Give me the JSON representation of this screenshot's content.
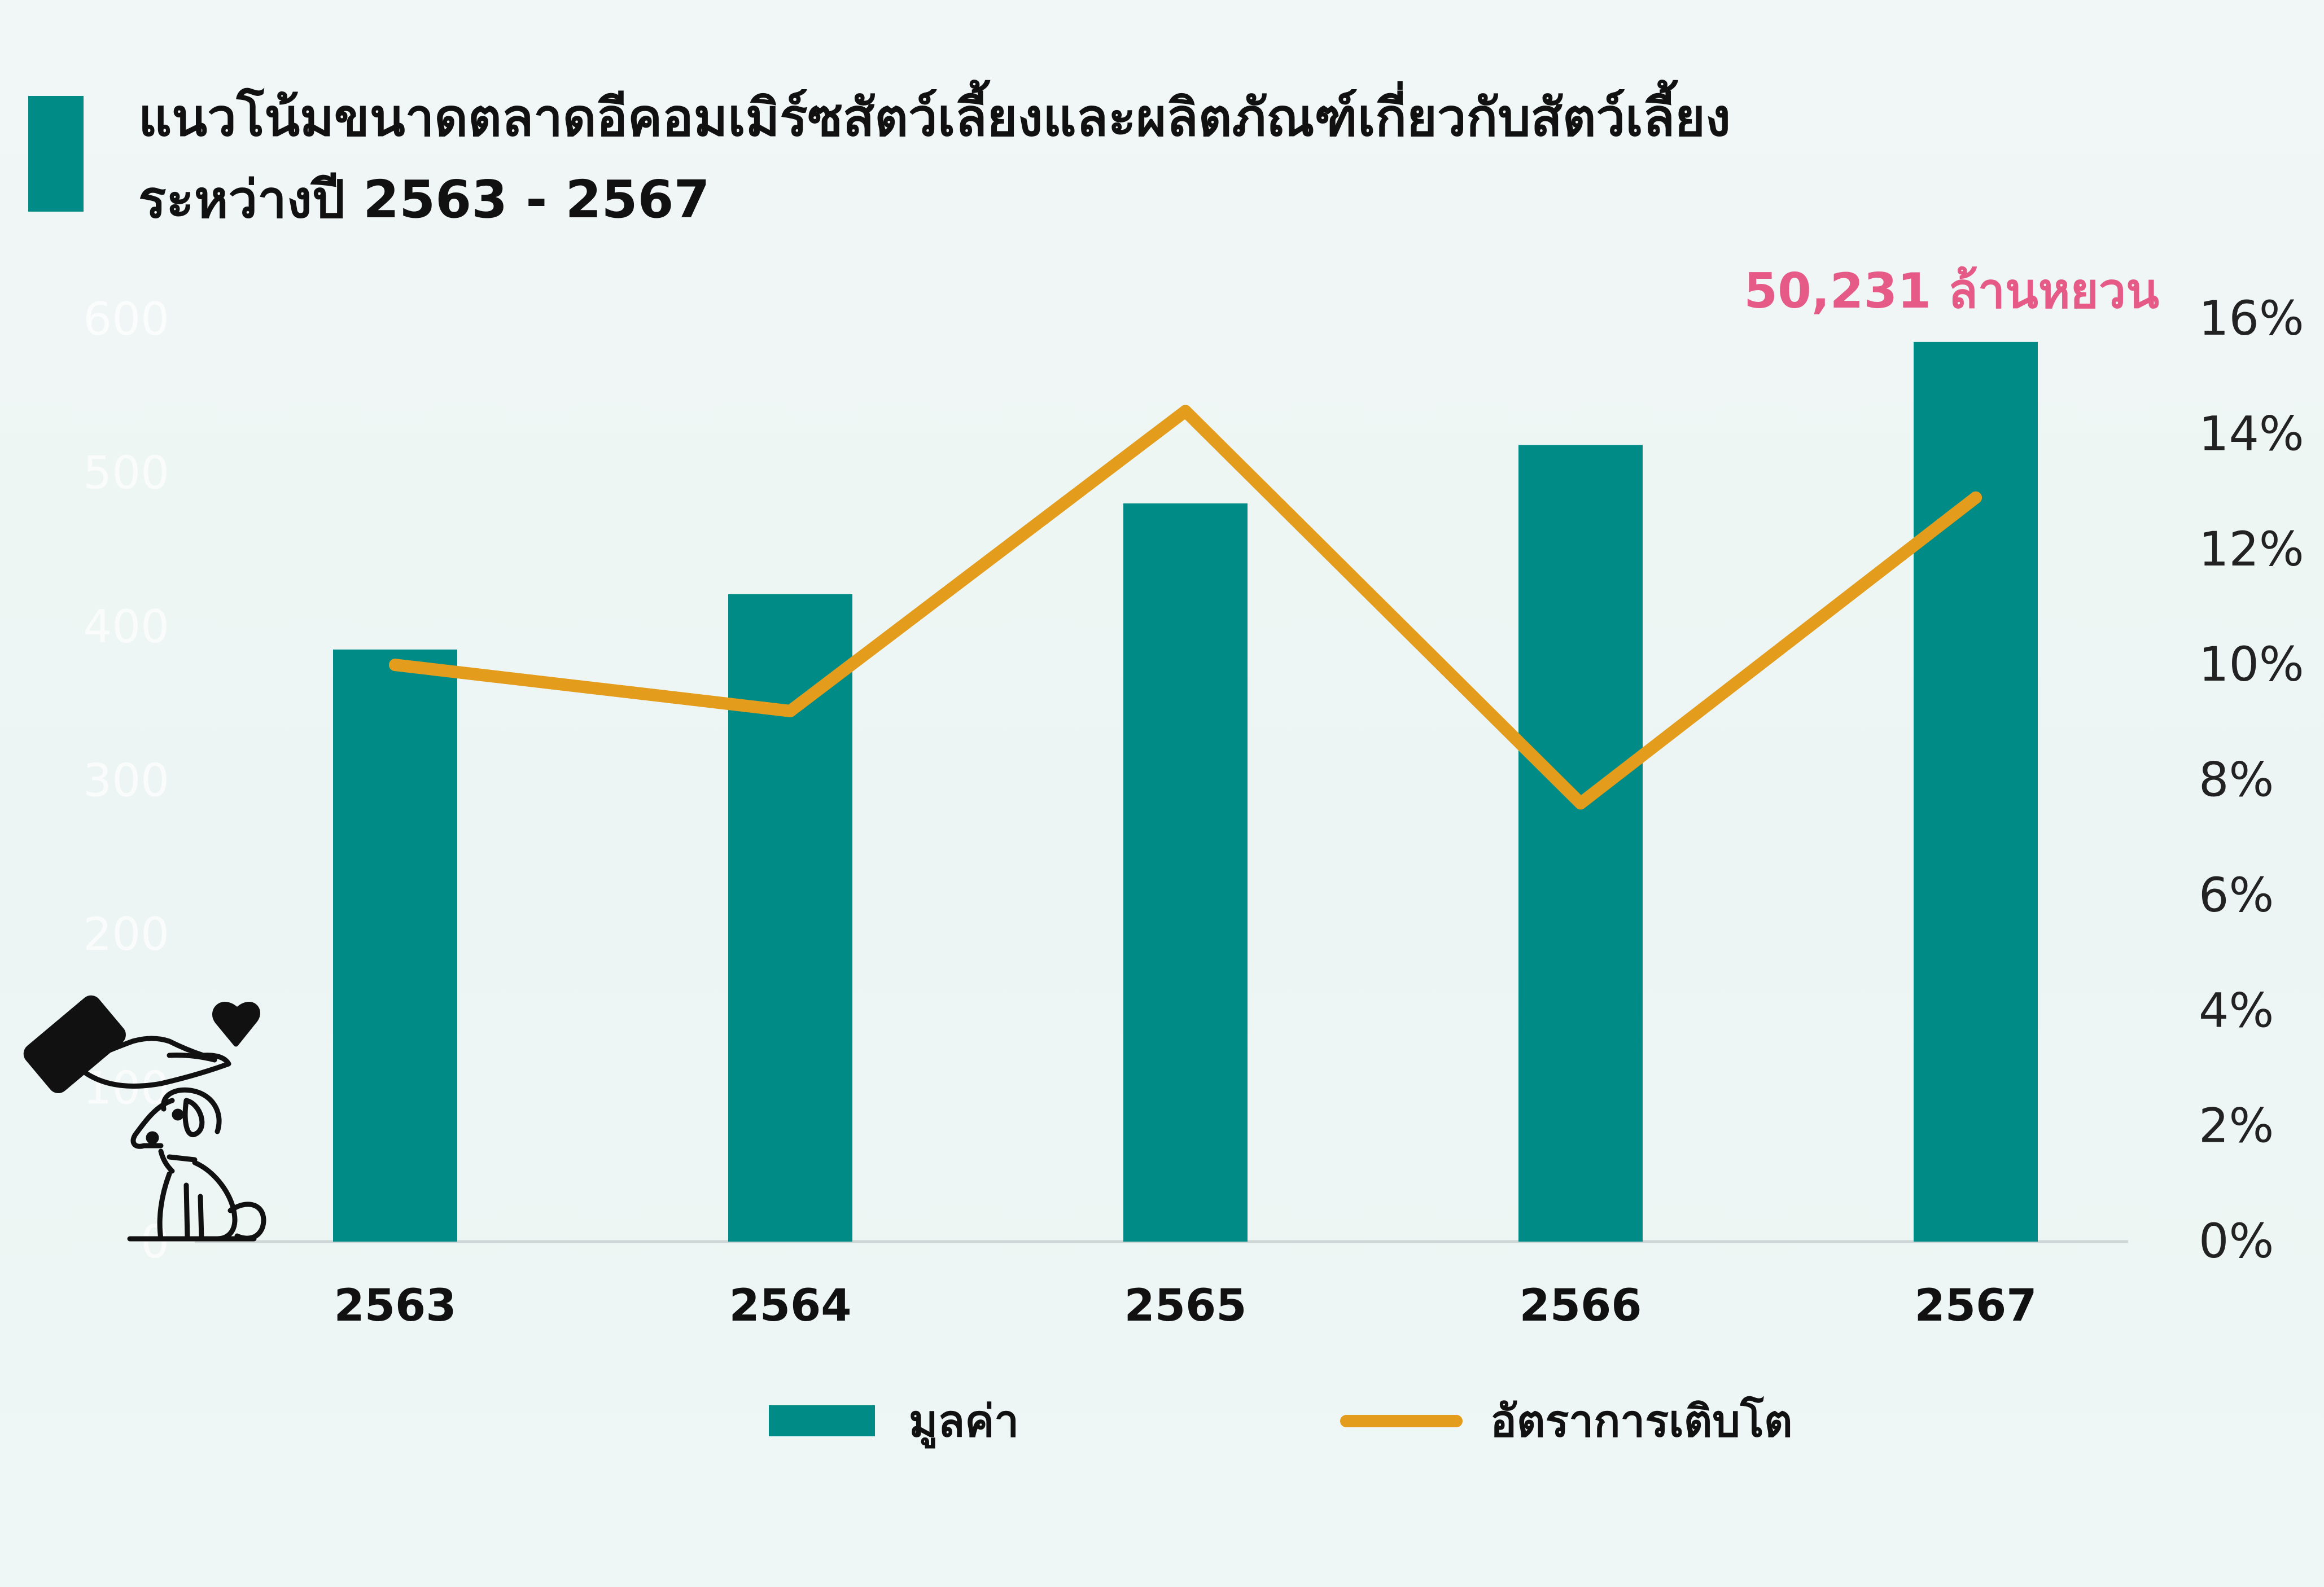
{
  "title": {
    "line1": "แนวโน้มขนาดตลาดอีคอมเมิร์ซสัตว์เลี้ยงและผลิตภัณฑ์เกี่ยวกับสัตว์เลี้ยง",
    "line2": "ระหว่างปี 2563 - 2567"
  },
  "annotation": "50,231 ล้านหยวน",
  "colors": {
    "bar": "#008b87",
    "line": "#e39c1c",
    "annotation": "#e55a86",
    "accent_block": "#008b87",
    "axis": "#cfd6d5"
  },
  "icon": "hand-petting-dog-icon",
  "chart_data": {
    "type": "bar",
    "categories": [
      "2563",
      "2564",
      "2565",
      "2566",
      "2567"
    ],
    "series": [
      {
        "name": "มูลค่า",
        "type": "bar",
        "axis": "left",
        "values": [
          385,
          421,
          480,
          518,
          585
        ]
      },
      {
        "name": "อัตราการเติบโต",
        "type": "line",
        "axis": "right",
        "values": [
          10.0,
          9.2,
          14.4,
          7.6,
          12.9
        ]
      }
    ],
    "left_axis": {
      "ylim": [
        0,
        600
      ],
      "ticks": [
        "0",
        "100",
        "200",
        "300",
        "400",
        "500",
        "600"
      ]
    },
    "right_axis": {
      "ylim": [
        0,
        16
      ],
      "ticks": [
        "0%",
        "2%",
        "4%",
        "6%",
        "8%",
        "10%",
        "12%",
        "14%",
        "16%"
      ]
    },
    "grid": false,
    "legend_position": "bottom"
  }
}
